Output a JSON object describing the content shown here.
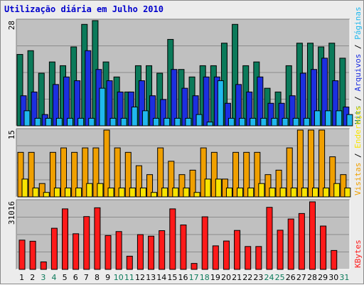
{
  "title": "Utilização diária em Julho 2010",
  "colors": {
    "hits": "#0b7a5a",
    "files": "#1c2fe0",
    "pages": "#20b8ee",
    "visits": "#f0a000",
    "sites": "#f8e400",
    "kbytes": "#ff1a1a",
    "weekend_label": "#0b7a5a",
    "weekday_label": "#000000"
  },
  "chart_data": [
    {
      "type": "bar",
      "title": "",
      "ymax_label": "28",
      "ylim": [
        0,
        28
      ],
      "categories": [
        "1",
        "2",
        "3",
        "4",
        "5",
        "6",
        "7",
        "8",
        "9",
        "10",
        "11",
        "12",
        "13",
        "14",
        "15",
        "16",
        "17",
        "18",
        "19",
        "20",
        "21",
        "22",
        "23",
        "24",
        "25",
        "26",
        "27",
        "28",
        "29",
        "30",
        "31"
      ],
      "legend": [
        {
          "text": "Hits",
          "color_key": "hits"
        },
        {
          "text": "Arquivos",
          "color_key": "files"
        },
        {
          "text": "Páginas",
          "color_key": "pages"
        }
      ],
      "legend_separator": " / ",
      "series": [
        {
          "name": "Hits",
          "color_key": "hits",
          "values": [
            19,
            20,
            14,
            17,
            16,
            21,
            27,
            28,
            17,
            13,
            9,
            16,
            16,
            14,
            23,
            15,
            13,
            16,
            16,
            22,
            27,
            16,
            17,
            10,
            9,
            16,
            22,
            22,
            21,
            22,
            18
          ]
        },
        {
          "name": "Arquivos",
          "color_key": "files",
          "values": [
            8,
            9,
            3,
            11,
            13,
            12,
            20,
            15,
            12,
            9,
            9,
            12,
            8,
            7,
            15,
            10,
            8,
            13,
            13,
            6,
            11,
            9,
            13,
            6,
            6,
            8,
            14,
            15,
            18,
            12,
            5
          ]
        },
        {
          "name": "Páginas",
          "color_key": "pages",
          "values": [
            4,
            2,
            2,
            2,
            2,
            2,
            2,
            10,
            2,
            2,
            5,
            4,
            2,
            2,
            2,
            2,
            3,
            1,
            12,
            2,
            2,
            2,
            2,
            2,
            2,
            2,
            2,
            4,
            4,
            4,
            3
          ]
        }
      ]
    },
    {
      "type": "bar",
      "title": "",
      "ymax_label": "15",
      "ylim": [
        0,
        15
      ],
      "categories": [
        "1",
        "2",
        "3",
        "4",
        "5",
        "6",
        "7",
        "8",
        "9",
        "10",
        "11",
        "12",
        "13",
        "14",
        "15",
        "16",
        "17",
        "18",
        "19",
        "20",
        "21",
        "22",
        "23",
        "24",
        "25",
        "26",
        "27",
        "28",
        "29",
        "30",
        "31"
      ],
      "legend": [
        {
          "text": "Visitas",
          "color_key": "visits"
        },
        {
          "text": "Endereços",
          "color_key": "sites"
        }
      ],
      "legend_separator": " / ",
      "series": [
        {
          "name": "Visitas",
          "color_key": "visits",
          "values": [
            10,
            10,
            3,
            10,
            11,
            10,
            11,
            11,
            15,
            11,
            10,
            7,
            5,
            11,
            8,
            5,
            6,
            11,
            10,
            4,
            10,
            10,
            10,
            5,
            6,
            11,
            15,
            15,
            15,
            9,
            5
          ]
        },
        {
          "name": "Endereços",
          "color_key": "sites",
          "values": [
            4,
            2,
            1,
            2,
            2,
            2,
            3,
            3,
            2,
            2,
            2,
            2,
            1,
            2,
            2,
            2,
            1,
            4,
            4,
            2,
            2,
            2,
            3,
            2,
            2,
            2,
            2,
            2,
            2,
            3,
            2
          ]
        }
      ]
    },
    {
      "type": "bar",
      "title": "",
      "ymax_label": "31016",
      "ylim": [
        0,
        31016
      ],
      "categories": [
        "1",
        "2",
        "3",
        "4",
        "5",
        "6",
        "7",
        "8",
        "9",
        "10",
        "11",
        "12",
        "13",
        "14",
        "15",
        "16",
        "17",
        "18",
        "19",
        "20",
        "21",
        "22",
        "23",
        "24",
        "25",
        "26",
        "27",
        "28",
        "29",
        "30",
        "31"
      ],
      "legend": [
        {
          "text": "KBytes",
          "color_key": "kbytes"
        }
      ],
      "legend_separator": " / ",
      "series": [
        {
          "name": "KBytes",
          "color_key": "kbytes",
          "values": [
            13300,
            12800,
            3400,
            18700,
            27500,
            16200,
            24000,
            28000,
            15400,
            17200,
            6000,
            15800,
            15100,
            17600,
            27500,
            20200,
            2700,
            23900,
            10700,
            12900,
            17700,
            10400,
            10400,
            28200,
            17800,
            22900,
            25400,
            30700,
            19700,
            8600,
            0
          ]
        }
      ]
    }
  ]
}
